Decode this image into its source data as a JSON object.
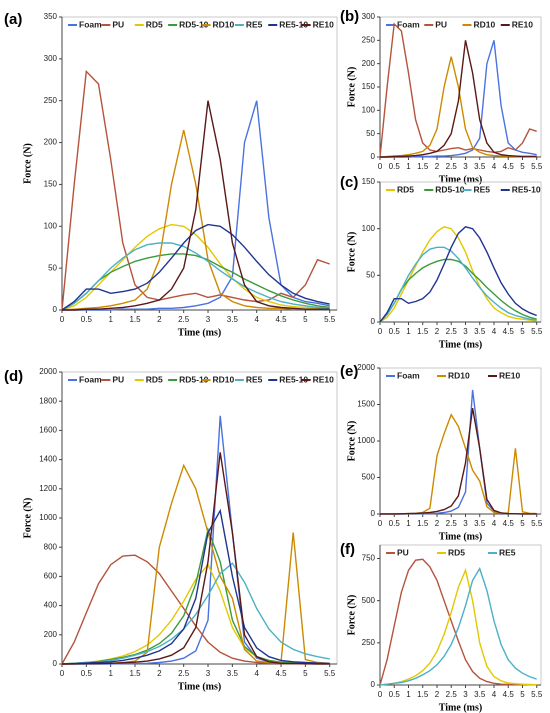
{
  "chart_data": [
    {
      "type": "line",
      "label": "(a)",
      "xlabel": "Time (ms)",
      "ylabel": "Force (N)",
      "legend": "top",
      "x": [
        0,
        0.25,
        0.5,
        0.75,
        1,
        1.25,
        1.5,
        1.75,
        2,
        2.25,
        2.5,
        2.75,
        3,
        3.25,
        3.5,
        3.75,
        4,
        4.25,
        4.5,
        4.75,
        5,
        5.25,
        5.5
      ],
      "xlim": [
        0,
        5.65
      ],
      "xticks": [
        0,
        0.5,
        1,
        1.5,
        2,
        2.5,
        3,
        3.5,
        4,
        4.5,
        5,
        5.5
      ],
      "ylim": [
        0,
        350
      ],
      "yticks": [
        0,
        50,
        100,
        150,
        200,
        250,
        300,
        350
      ],
      "series": [
        {
          "name": "Foam",
          "color": "#4a72e0",
          "values": [
            0,
            0,
            0,
            0,
            0,
            1,
            1,
            1,
            2,
            2,
            3,
            5,
            8,
            15,
            40,
            200,
            250,
            110,
            30,
            15,
            10,
            8,
            5
          ]
        },
        {
          "name": "PU",
          "color": "#b5533c",
          "values": [
            0,
            150,
            285,
            270,
            180,
            80,
            30,
            15,
            12,
            15,
            18,
            20,
            15,
            18,
            15,
            12,
            10,
            12,
            20,
            15,
            30,
            60,
            55
          ]
        },
        {
          "name": "RD5",
          "color": "#e3c800",
          "values": [
            0,
            5,
            15,
            30,
            45,
            60,
            75,
            88,
            97,
            102,
            100,
            90,
            75,
            55,
            38,
            25,
            15,
            10,
            6,
            4,
            3,
            2,
            1
          ]
        },
        {
          "name": "RD5-10",
          "color": "#3c9a3c",
          "values": [
            0,
            8,
            20,
            35,
            45,
            52,
            58,
            62,
            65,
            67,
            67,
            65,
            60,
            52,
            45,
            37,
            30,
            23,
            17,
            12,
            8,
            5,
            3
          ]
        },
        {
          "name": "RD10",
          "color": "#cc8a00",
          "values": [
            0,
            1,
            2,
            3,
            5,
            8,
            12,
            25,
            60,
            150,
            215,
            150,
            60,
            20,
            10,
            5,
            3,
            2,
            2,
            1,
            1,
            1,
            1
          ]
        },
        {
          "name": "RE5",
          "color": "#4bb0c8",
          "values": [
            0,
            8,
            20,
            35,
            50,
            62,
            72,
            78,
            80,
            80,
            76,
            68,
            58,
            47,
            37,
            28,
            21,
            15,
            10,
            7,
            5,
            3,
            2
          ]
        },
        {
          "name": "RE5-10",
          "color": "#1f3590",
          "values": [
            0,
            10,
            25,
            25,
            20,
            22,
            25,
            32,
            45,
            62,
            80,
            95,
            102,
            100,
            90,
            75,
            58,
            42,
            30,
            20,
            14,
            10,
            7
          ]
        },
        {
          "name": "RE10",
          "color": "#5a1818",
          "values": [
            0,
            0,
            1,
            1,
            2,
            3,
            5,
            8,
            12,
            25,
            50,
            120,
            250,
            180,
            80,
            30,
            10,
            5,
            3,
            2,
            1,
            1,
            1
          ]
        }
      ]
    },
    {
      "type": "line",
      "label": "(b)",
      "xlabel": "Time (ms)",
      "ylabel": "Force (N)",
      "legend": "top",
      "x": [
        0,
        0.25,
        0.5,
        0.75,
        1,
        1.25,
        1.5,
        1.75,
        2,
        2.25,
        2.5,
        2.75,
        3,
        3.25,
        3.5,
        3.75,
        4,
        4.25,
        4.5,
        4.75,
        5,
        5.25,
        5.5
      ],
      "xlim": [
        0,
        5.65
      ],
      "xticks": [
        0,
        0.5,
        1,
        1.5,
        2,
        2.5,
        3,
        3.5,
        4,
        4.5,
        5,
        5.5
      ],
      "ylim": [
        0,
        300
      ],
      "yticks": [
        0,
        50,
        100,
        150,
        200,
        250,
        300
      ],
      "series": [
        {
          "name": "Foam",
          "color": "#4a72e0",
          "values": [
            0,
            0,
            0,
            0,
            0,
            1,
            1,
            1,
            2,
            2,
            3,
            5,
            8,
            15,
            40,
            200,
            250,
            110,
            30,
            15,
            10,
            8,
            5
          ]
        },
        {
          "name": "PU",
          "color": "#b5533c",
          "values": [
            0,
            150,
            285,
            270,
            180,
            80,
            30,
            15,
            12,
            15,
            18,
            20,
            15,
            18,
            15,
            12,
            10,
            12,
            20,
            15,
            30,
            60,
            55
          ]
        },
        {
          "name": "RD10",
          "color": "#cc8a00",
          "values": [
            0,
            1,
            2,
            3,
            5,
            8,
            12,
            25,
            60,
            150,
            215,
            150,
            60,
            20,
            10,
            5,
            3,
            2,
            2,
            1,
            1,
            1,
            1
          ]
        },
        {
          "name": "RE10",
          "color": "#5a1818",
          "values": [
            0,
            0,
            1,
            1,
            2,
            3,
            5,
            8,
            12,
            25,
            50,
            120,
            250,
            180,
            80,
            30,
            10,
            5,
            3,
            2,
            1,
            1,
            1
          ]
        }
      ]
    },
    {
      "type": "line",
      "label": "(c)",
      "xlabel": "Time (ms)",
      "ylabel": "Force (N)",
      "legend": "top",
      "x": [
        0,
        0.25,
        0.5,
        0.75,
        1,
        1.25,
        1.5,
        1.75,
        2,
        2.25,
        2.5,
        2.75,
        3,
        3.25,
        3.5,
        3.75,
        4,
        4.25,
        4.5,
        4.75,
        5,
        5.25,
        5.5
      ],
      "xlim": [
        0,
        5.65
      ],
      "xticks": [
        0,
        0.5,
        1,
        1.5,
        2,
        2.5,
        3,
        3.5,
        4,
        4.5,
        5,
        5.5
      ],
      "ylim": [
        0,
        150
      ],
      "yticks": [
        0,
        50,
        100,
        150
      ],
      "series": [
        {
          "name": "RD5",
          "color": "#e3c800",
          "values": [
            0,
            5,
            15,
            30,
            45,
            60,
            75,
            88,
            97,
            102,
            100,
            90,
            75,
            55,
            38,
            25,
            15,
            10,
            6,
            4,
            3,
            2,
            1
          ]
        },
        {
          "name": "RD5-10",
          "color": "#3c9a3c",
          "values": [
            0,
            8,
            20,
            35,
            45,
            52,
            58,
            62,
            65,
            67,
            67,
            65,
            60,
            52,
            45,
            37,
            30,
            23,
            17,
            12,
            8,
            5,
            3
          ]
        },
        {
          "name": "RE5",
          "color": "#4bb0c8",
          "values": [
            0,
            8,
            20,
            35,
            50,
            62,
            72,
            78,
            80,
            80,
            76,
            68,
            58,
            47,
            37,
            28,
            21,
            15,
            10,
            7,
            5,
            3,
            2
          ]
        },
        {
          "name": "RE5-10",
          "color": "#1f3590",
          "values": [
            0,
            10,
            25,
            25,
            20,
            22,
            25,
            32,
            45,
            62,
            80,
            95,
            102,
            100,
            90,
            75,
            58,
            42,
            30,
            20,
            14,
            10,
            7
          ]
        }
      ]
    },
    {
      "type": "line",
      "label": "(d)",
      "xlabel": "Time (ms)",
      "ylabel": "Force (N)",
      "legend": "top",
      "x": [
        0,
        0.25,
        0.5,
        0.75,
        1,
        1.25,
        1.5,
        1.75,
        2,
        2.25,
        2.5,
        2.75,
        3,
        3.25,
        3.5,
        3.75,
        4,
        4.25,
        4.5,
        4.75,
        5,
        5.25,
        5.5
      ],
      "xlim": [
        0,
        5.65
      ],
      "xticks": [
        0,
        0.5,
        1,
        1.5,
        2,
        2.5,
        3,
        3.5,
        4,
        4.5,
        5,
        5.5
      ],
      "ylim": [
        0,
        2000
      ],
      "yticks": [
        0,
        200,
        400,
        600,
        800,
        1000,
        1200,
        1400,
        1600,
        1800,
        2000
      ],
      "series": [
        {
          "name": "Foam",
          "color": "#4a72e0",
          "values": [
            0,
            0,
            0,
            0,
            1,
            2,
            3,
            5,
            10,
            20,
            40,
            90,
            300,
            1700,
            900,
            150,
            40,
            15,
            5,
            3,
            2,
            1,
            1
          ]
        },
        {
          "name": "PU",
          "color": "#b5533c",
          "values": [
            0,
            150,
            350,
            550,
            680,
            740,
            745,
            700,
            620,
            500,
            380,
            260,
            150,
            80,
            40,
            20,
            10,
            5,
            3,
            2,
            1,
            1,
            1
          ]
        },
        {
          "name": "RD5",
          "color": "#e3c800",
          "values": [
            0,
            5,
            10,
            20,
            35,
            55,
            85,
            130,
            200,
            300,
            430,
            580,
            680,
            500,
            250,
            110,
            50,
            25,
            12,
            8,
            5,
            3,
            2
          ]
        },
        {
          "name": "RD5-10",
          "color": "#3c9a3c",
          "values": [
            0,
            5,
            10,
            18,
            30,
            45,
            65,
            95,
            140,
            210,
            330,
            550,
            920,
            700,
            300,
            120,
            50,
            25,
            12,
            8,
            5,
            3,
            2
          ]
        },
        {
          "name": "RD10",
          "color": "#cc8a00",
          "values": [
            0,
            1,
            2,
            3,
            5,
            10,
            20,
            80,
            800,
            1100,
            1360,
            1200,
            900,
            600,
            450,
            100,
            20,
            10,
            10,
            900,
            30,
            10,
            5
          ]
        },
        {
          "name": "RE5",
          "color": "#4bb0c8",
          "values": [
            0,
            5,
            10,
            15,
            25,
            40,
            60,
            85,
            120,
            170,
            240,
            340,
            470,
            620,
            690,
            560,
            380,
            240,
            150,
            100,
            70,
            50,
            35
          ]
        },
        {
          "name": "RE5-10",
          "color": "#1f3590",
          "values": [
            0,
            3,
            6,
            10,
            15,
            25,
            40,
            60,
            90,
            140,
            240,
            450,
            900,
            1050,
            600,
            250,
            110,
            50,
            25,
            15,
            10,
            6,
            4
          ]
        },
        {
          "name": "RE10",
          "color": "#5a1818",
          "values": [
            0,
            1,
            2,
            3,
            5,
            8,
            12,
            20,
            35,
            60,
            110,
            250,
            700,
            1450,
            900,
            200,
            50,
            15,
            5,
            3,
            2,
            1,
            1
          ]
        }
      ]
    },
    {
      "type": "line",
      "label": "(e)",
      "xlabel": "Time (ms)",
      "ylabel": "Force (N)",
      "legend": "top",
      "x": [
        0,
        0.25,
        0.5,
        0.75,
        1,
        1.25,
        1.5,
        1.75,
        2,
        2.25,
        2.5,
        2.75,
        3,
        3.25,
        3.5,
        3.75,
        4,
        4.25,
        4.5,
        4.75,
        5,
        5.25,
        5.5
      ],
      "xlim": [
        0,
        5.65
      ],
      "xticks": [
        0,
        0.5,
        1,
        1.5,
        2,
        2.5,
        3,
        3.5,
        4,
        4.5,
        5,
        5.5
      ],
      "ylim": [
        0,
        2000
      ],
      "yticks": [
        0,
        500,
        1000,
        1500,
        2000
      ],
      "series": [
        {
          "name": "Foam",
          "color": "#4a72e0",
          "values": [
            0,
            0,
            0,
            0,
            1,
            2,
            3,
            5,
            10,
            20,
            40,
            90,
            300,
            1700,
            900,
            150,
            40,
            15,
            5,
            3,
            2,
            1,
            1
          ]
        },
        {
          "name": "RD10",
          "color": "#cc8a00",
          "values": [
            0,
            1,
            2,
            3,
            5,
            10,
            20,
            80,
            800,
            1100,
            1360,
            1200,
            900,
            600,
            450,
            100,
            20,
            10,
            10,
            900,
            30,
            10,
            5
          ]
        },
        {
          "name": "RE10",
          "color": "#5a1818",
          "values": [
            0,
            1,
            2,
            3,
            5,
            8,
            12,
            20,
            35,
            60,
            110,
            250,
            700,
            1450,
            900,
            200,
            50,
            15,
            5,
            3,
            2,
            1,
            1
          ]
        }
      ]
    },
    {
      "type": "line",
      "label": "(f)",
      "xlabel": "Time (ms)",
      "ylabel": "Force (N)",
      "legend": "top",
      "x": [
        0,
        0.25,
        0.5,
        0.75,
        1,
        1.25,
        1.5,
        1.75,
        2,
        2.25,
        2.5,
        2.75,
        3,
        3.25,
        3.5,
        3.75,
        4,
        4.25,
        4.5,
        4.75,
        5,
        5.25,
        5.5
      ],
      "xlim": [
        0,
        5.65
      ],
      "xticks": [
        0,
        0.5,
        1,
        1.5,
        2,
        2.5,
        3,
        3.5,
        4,
        4.5,
        5,
        5.5
      ],
      "ylim": [
        0,
        830
      ],
      "yticks": [
        0,
        250,
        500,
        750
      ],
      "series": [
        {
          "name": "PU",
          "color": "#b5533c",
          "values": [
            0,
            150,
            350,
            550,
            680,
            740,
            745,
            700,
            620,
            500,
            380,
            260,
            150,
            80,
            40,
            20,
            10,
            5,
            3,
            2,
            1,
            1,
            1
          ]
        },
        {
          "name": "RD5",
          "color": "#e3c800",
          "values": [
            0,
            5,
            10,
            20,
            35,
            55,
            85,
            130,
            200,
            300,
            430,
            580,
            680,
            500,
            250,
            110,
            50,
            25,
            12,
            8,
            5,
            3,
            2
          ]
        },
        {
          "name": "RE5",
          "color": "#4bb0c8",
          "values": [
            0,
            5,
            10,
            15,
            25,
            40,
            60,
            85,
            120,
            170,
            240,
            340,
            470,
            620,
            690,
            560,
            380,
            240,
            150,
            100,
            70,
            50,
            35
          ]
        }
      ]
    }
  ]
}
